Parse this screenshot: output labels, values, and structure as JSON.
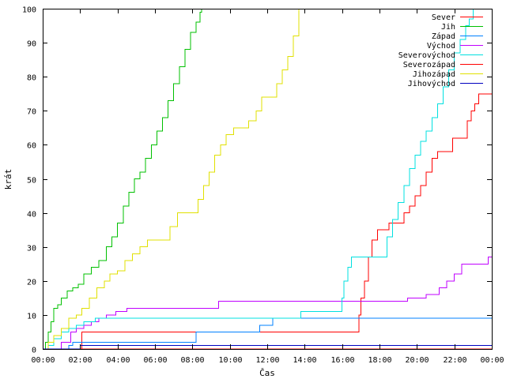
{
  "chart_data": {
    "type": "line",
    "title": "",
    "xlabel": "Čas",
    "ylabel": "krát",
    "xlim": [
      0,
      24
    ],
    "ylim": [
      0,
      100
    ],
    "grid": false,
    "legend_position": "top-right",
    "x_tick_labels": [
      "00:00",
      "02:00",
      "04:00",
      "06:00",
      "08:00",
      "10:00",
      "12:00",
      "14:00",
      "16:00",
      "18:00",
      "20:00",
      "22:00",
      "00:00"
    ],
    "y_tick_labels": [
      "0",
      "10",
      "20",
      "30",
      "40",
      "50",
      "60",
      "70",
      "80",
      "90",
      "100"
    ],
    "series": [
      {
        "name": "Sever",
        "color": "#ff0000",
        "x": [
          0,
          2.0,
          2.1,
          16.7,
          16.9,
          17.0,
          17.2,
          17.4,
          17.6,
          17.9,
          18.2,
          18.5,
          18.9,
          19.3,
          19.6,
          19.9,
          20.2,
          20.5,
          20.8,
          21.1,
          21.5,
          21.9,
          22.4,
          22.7,
          22.9,
          23.1,
          23.3,
          24.0
        ],
        "y": [
          0,
          0,
          5,
          5,
          10,
          15,
          20,
          27,
          32,
          35,
          35,
          37,
          37,
          40,
          42,
          45,
          48,
          52,
          56,
          58,
          58,
          62,
          62,
          67,
          70,
          72,
          75,
          75
        ]
      },
      {
        "name": "Jih",
        "color": "#00c000",
        "x": [
          0,
          0.15,
          0.3,
          0.45,
          0.6,
          0.8,
          1.0,
          1.3,
          1.6,
          1.9,
          2.2,
          2.6,
          3.0,
          3.4,
          3.7,
          4.0,
          4.3,
          4.6,
          4.9,
          5.2,
          5.5,
          5.8,
          6.1,
          6.4,
          6.7,
          7.0,
          7.3,
          7.6,
          7.9,
          8.2,
          8.4,
          8.5
        ],
        "y": [
          0,
          2,
          5,
          8,
          12,
          13,
          15,
          17,
          18,
          19,
          22,
          24,
          26,
          30,
          33,
          37,
          42,
          46,
          50,
          52,
          56,
          60,
          64,
          68,
          73,
          78,
          83,
          88,
          93,
          96,
          99,
          100
        ]
      },
      {
        "name": "Západ",
        "color": "#0080ff",
        "x": [
          0,
          1.3,
          1.4,
          1.6,
          1.8,
          2.0,
          2.3,
          2.6,
          3.0,
          8.0,
          8.2,
          11.5,
          11.6,
          12.2,
          12.3,
          13.7,
          24.0
        ],
        "y": [
          0,
          0,
          1,
          2,
          2,
          2,
          2,
          2,
          2,
          2,
          5,
          5,
          7,
          7,
          9,
          9,
          9
        ]
      },
      {
        "name": "Východ",
        "color": "#c000ff",
        "x": [
          0,
          1.0,
          1.2,
          1.5,
          1.8,
          2.2,
          2.6,
          3.0,
          3.4,
          3.9,
          4.5,
          5.0,
          6.0,
          9.4,
          15.8,
          16.2,
          19.0,
          19.5,
          20.5,
          21.2,
          21.6,
          22.0,
          22.4,
          23.6,
          23.8,
          24.0
        ],
        "y": [
          0,
          2,
          2,
          5,
          6,
          7,
          8,
          9,
          10,
          11,
          12,
          12,
          12,
          14,
          14,
          14,
          14,
          15,
          16,
          18,
          20,
          22,
          25,
          25,
          27,
          27
        ]
      },
      {
        "name": "Severovýchod",
        "color": "#00e0e0",
        "x": [
          0,
          0.3,
          0.6,
          1.0,
          1.4,
          1.8,
          2.2,
          2.8,
          3.4,
          4.0,
          13.8,
          15.9,
          16.0,
          16.1,
          16.3,
          16.5,
          16.7,
          18.1,
          18.4,
          18.7,
          19.0,
          19.3,
          19.6,
          19.9,
          20.2,
          20.5,
          20.8,
          21.1,
          21.4,
          21.7,
          22.0,
          22.3,
          22.6,
          22.8,
          23.0
        ],
        "y": [
          0,
          1,
          3,
          5,
          6,
          7,
          8,
          9,
          9,
          9,
          11,
          11,
          15,
          20,
          24,
          27,
          27,
          27,
          33,
          38,
          43,
          48,
          53,
          57,
          61,
          64,
          68,
          72,
          77,
          82,
          87,
          91,
          95,
          97,
          100
        ]
      },
      {
        "name": "Severozápad",
        "color": "#ff0000",
        "x": [
          0,
          24.0
        ],
        "y": [
          0,
          0
        ]
      },
      {
        "name": "Jihozápad",
        "color": "#e0e000",
        "x": [
          0,
          0.3,
          0.6,
          1.0,
          1.4,
          1.8,
          2.1,
          2.5,
          2.9,
          3.3,
          3.6,
          4.0,
          4.4,
          4.8,
          5.2,
          5.6,
          6.0,
          6.4,
          6.8,
          7.2,
          8.0,
          8.3,
          8.6,
          8.9,
          9.2,
          9.5,
          9.8,
          10.2,
          10.6,
          11.0,
          11.4,
          11.7,
          12.1,
          12.5,
          12.8,
          13.1,
          13.4,
          13.7
        ],
        "y": [
          0,
          2,
          4,
          6,
          9,
          10,
          12,
          15,
          18,
          20,
          22,
          23,
          26,
          28,
          30,
          32,
          32,
          32,
          36,
          40,
          40,
          44,
          48,
          52,
          57,
          60,
          63,
          65,
          65,
          67,
          70,
          74,
          74,
          78,
          82,
          86,
          92,
          100
        ]
      },
      {
        "name": "Jihovýchod",
        "color": "#0000c0",
        "x": [
          0,
          1.9,
          2.0,
          24.0
        ],
        "y": [
          0,
          0,
          1,
          1
        ]
      }
    ]
  }
}
